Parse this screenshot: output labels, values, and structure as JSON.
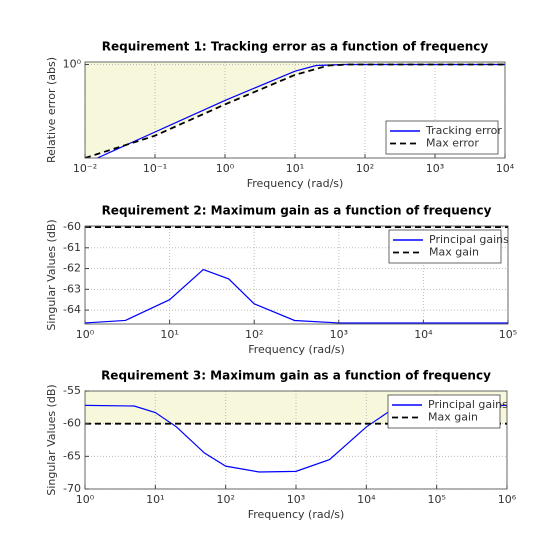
{
  "chart_data": [
    {
      "type": "line",
      "title": "Requirement 1: Tracking error as a function of frequency",
      "xlabel": "Frequency (rad/s)",
      "ylabel": "Relative error (abs)",
      "xscale": "log",
      "yscale": "log",
      "grid": true,
      "legend": "southeast",
      "fill_color": "#f7f7dc",
      "xlim": [
        0.01,
        10000
      ],
      "ylim": [
        0.01,
        1.13
      ],
      "xticks": [
        {
          "value": 0.01,
          "label": "10⁻²"
        },
        {
          "value": 0.1,
          "label": "10⁻¹"
        },
        {
          "value": 1,
          "label": "10⁰"
        },
        {
          "value": 10,
          "label": "10¹"
        },
        {
          "value": 100,
          "label": "10²"
        },
        {
          "value": 1000,
          "label": "10³"
        },
        {
          "value": 10000,
          "label": "10⁴"
        }
      ],
      "yticks": [
        {
          "value": 1,
          "label": "10⁰"
        }
      ],
      "series": [
        {
          "name": "Tracking error",
          "color": "#0000ff",
          "style": "solid",
          "x": [
            0.015,
            0.1,
            1,
            10,
            20,
            50,
            10000
          ],
          "values": [
            0.01,
            0.036,
            0.17,
            0.72,
            0.95,
            1,
            1
          ]
        },
        {
          "name": "Max error",
          "color": "#000000",
          "style": "dashed",
          "shade": "above",
          "x": [
            0.01,
            0.1,
            1,
            10,
            30,
            60,
            10000
          ],
          "values": [
            0.01,
            0.03,
            0.14,
            0.6,
            0.95,
            1,
            1
          ]
        }
      ]
    },
    {
      "type": "line",
      "title": "Requirement 2: Maximum gain as a function of frequency",
      "xlabel": "Frequency (rad/s)",
      "ylabel": "Singular Values (dB)",
      "xscale": "log",
      "yscale": "linear",
      "grid": true,
      "legend": "northeast",
      "fill_color": "#f7f7dc",
      "xlim": [
        1,
        100000
      ],
      "ylim": [
        -64.67,
        -59.95
      ],
      "xticks": [
        {
          "value": 1,
          "label": "10⁰"
        },
        {
          "value": 10,
          "label": "10¹"
        },
        {
          "value": 100,
          "label": "10²"
        },
        {
          "value": 1000,
          "label": "10³"
        },
        {
          "value": 10000,
          "label": "10⁴"
        },
        {
          "value": 100000,
          "label": "10⁵"
        }
      ],
      "yticks": [
        -60,
        -61,
        -62,
        -63,
        -64
      ],
      "series": [
        {
          "name": "Principal gains",
          "color": "#0000ff",
          "style": "solid",
          "x": [
            1,
            3,
            10,
            25,
            50,
            100,
            300,
            1000,
            100000
          ],
          "values": [
            -64.62,
            -64.5,
            -63.5,
            -62.05,
            -62.5,
            -63.7,
            -64.5,
            -64.62,
            -64.62
          ]
        },
        {
          "name": "Max gain",
          "color": "#000000",
          "style": "dashed",
          "x": [
            1,
            100000
          ],
          "values": [
            -60,
            -60
          ]
        }
      ]
    },
    {
      "type": "line",
      "title": "Requirement 3: Maximum gain as a function of frequency",
      "xlabel": "Frequency (rad/s)",
      "ylabel": "Singular Values (dB)",
      "xscale": "log",
      "yscale": "linear",
      "grid": true,
      "legend": "northeast",
      "fill_color": "#f7f7dc",
      "xlim": [
        1,
        1000000
      ],
      "ylim": [
        -70,
        -55
      ],
      "xticks": [
        {
          "value": 1,
          "label": "10⁰"
        },
        {
          "value": 10,
          "label": "10¹"
        },
        {
          "value": 100,
          "label": "10²"
        },
        {
          "value": 1000,
          "label": "10³"
        },
        {
          "value": 10000,
          "label": "10⁴"
        },
        {
          "value": 100000,
          "label": "10⁵"
        },
        {
          "value": 1000000,
          "label": "10⁶"
        }
      ],
      "yticks": [
        -55,
        -60,
        -65,
        -70
      ],
      "series": [
        {
          "name": "Principal gains",
          "color": "#0000ff",
          "style": "solid",
          "x": [
            1,
            5,
            10,
            20,
            50,
            100,
            300,
            1000,
            3000,
            10000,
            20000,
            50000,
            1000000
          ],
          "values": [
            -57.2,
            -57.3,
            -58.3,
            -60.5,
            -64.5,
            -66.5,
            -67.4,
            -67.3,
            -65.5,
            -60.5,
            -58.3,
            -57.3,
            -57.2
          ]
        },
        {
          "name": "Max gain",
          "color": "#000000",
          "style": "dashed",
          "shade": "above",
          "x": [
            1,
            1000000
          ],
          "values": [
            -60,
            -60
          ]
        }
      ]
    }
  ]
}
